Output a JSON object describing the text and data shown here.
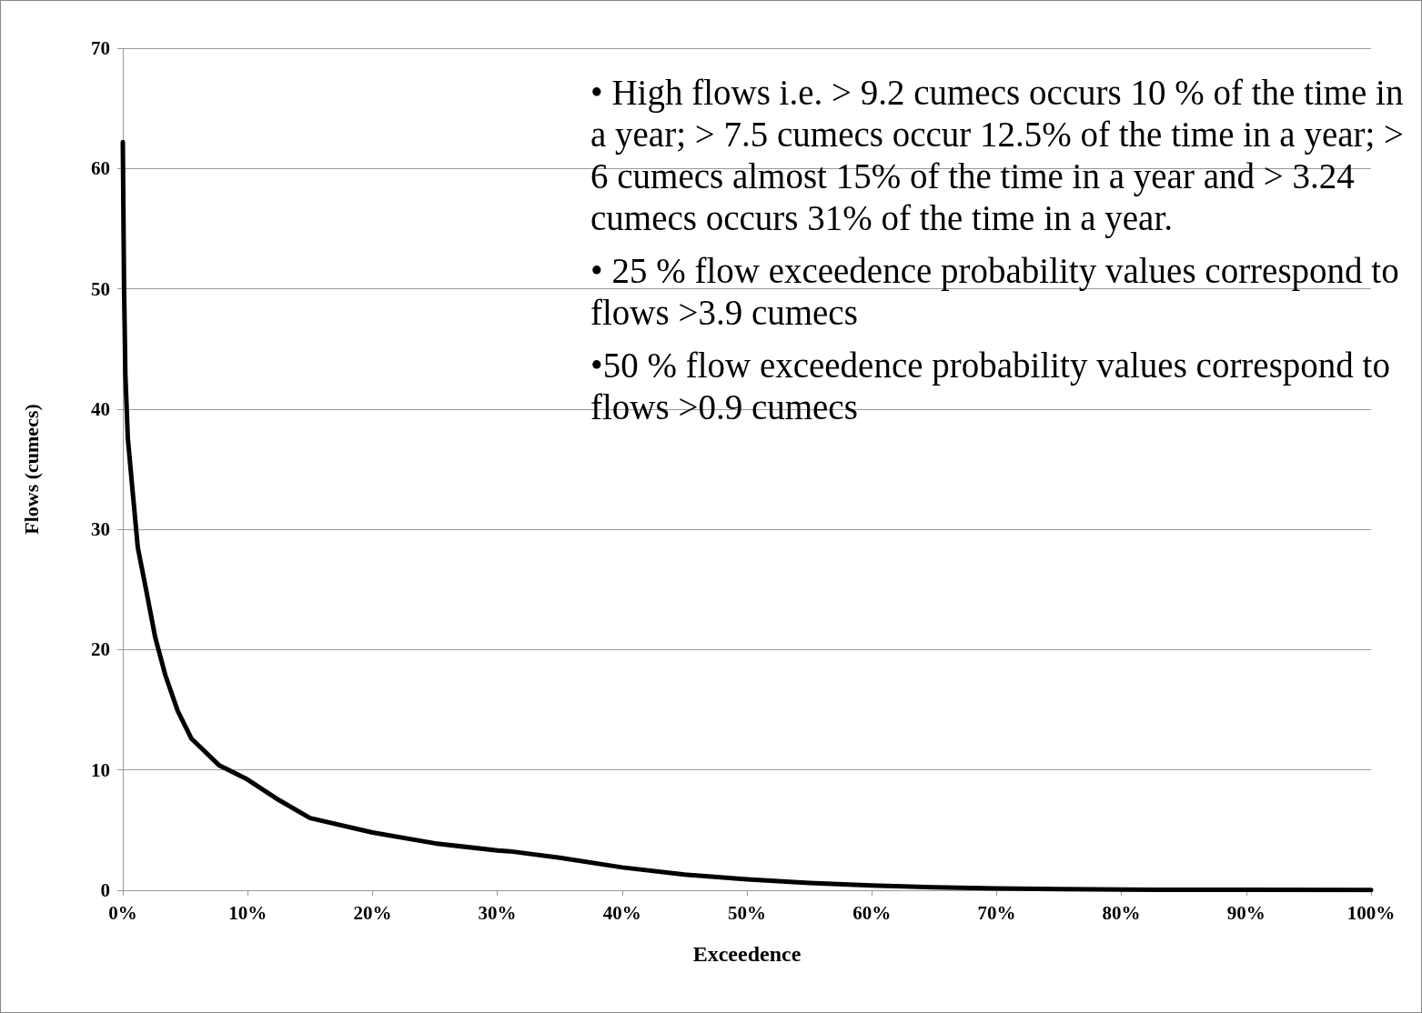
{
  "chart_data": {
    "type": "line",
    "xlabel": "Exceedence",
    "ylabel": "Flows (cumecs)",
    "x": [
      0,
      0.05,
      0.1,
      0.15,
      0.2,
      0.4,
      0.8,
      1.2,
      1.9,
      2.6,
      3.4,
      4.4,
      5.5,
      7.7,
      10,
      12.5,
      15,
      20,
      25,
      30,
      31,
      35,
      40,
      45,
      50,
      55,
      60,
      65,
      70,
      75,
      80,
      90,
      100
    ],
    "series": [
      {
        "color": "#000000",
        "values": [
          62.2,
          56,
          50,
          46.7,
          43,
          37.6,
          33,
          28.5,
          24.8,
          21,
          17.9,
          14.9,
          12.6,
          10.4,
          9.2,
          7.5,
          6,
          4.8,
          3.9,
          3.3,
          3.24,
          2.7,
          1.9,
          1.3,
          0.9,
          0.6,
          0.4,
          0.25,
          0.15,
          0.1,
          0.05,
          0.03,
          0.02
        ]
      }
    ],
    "xlim": [
      0,
      100
    ],
    "xticks": [
      {
        "value": 0,
        "label": "0%"
      },
      {
        "value": 10,
        "label": "10%"
      },
      {
        "value": 20,
        "label": "20%"
      },
      {
        "value": 30,
        "label": "30%"
      },
      {
        "value": 40,
        "label": "40%"
      },
      {
        "value": 50,
        "label": "50%"
      },
      {
        "value": 60,
        "label": "60%"
      },
      {
        "value": 70,
        "label": "70%"
      },
      {
        "value": 80,
        "label": "80%"
      },
      {
        "value": 90,
        "label": "90%"
      },
      {
        "value": 100,
        "label": "100%"
      }
    ],
    "ylim": [
      0,
      70
    ],
    "yticks": [
      0,
      10,
      20,
      30,
      40,
      50,
      60,
      70
    ],
    "grid": "y",
    "marker": "none",
    "line_style": "solid",
    "annotations": [
      "• High flows i.e. > 9.2 cumecs occurs 10 % of the time in a year; > 7.5 cumecs occur 12.5% of the time in a year; > 6 cumecs almost 15% of the time in a year and > 3.24 cumecs occurs 31% of the time in a year.",
      "• 25 % flow exceedence probability values correspond to flows >3.9 cumecs",
      "•50 % flow exceedence probability values correspond to flows >0.9 cumecs"
    ]
  }
}
